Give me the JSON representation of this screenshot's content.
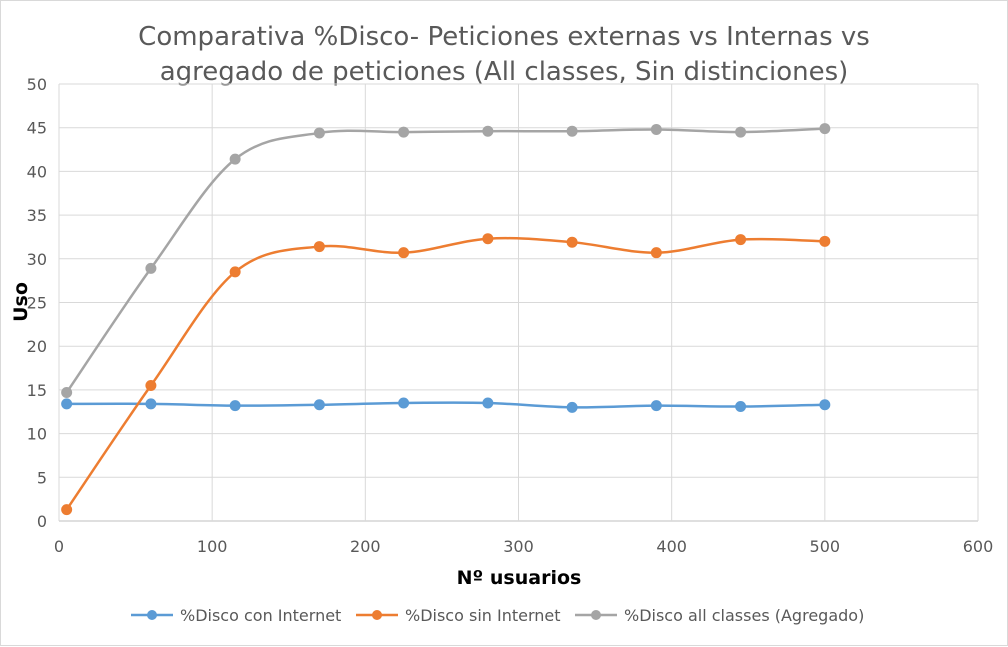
{
  "chart_data": {
    "type": "line",
    "title_lines": [
      "Comparativa %Disco- Peticiones externas vs Internas vs",
      "agregado de peticiones (All classes, Sin distinciones)"
    ],
    "xlabel": "Nº usuarios",
    "ylabel": "Uso",
    "xlim": [
      0,
      600
    ],
    "ylim": [
      0,
      50
    ],
    "x_ticks": [
      "0",
      "100",
      "200",
      "300",
      "400",
      "500",
      "600"
    ],
    "y_ticks": [
      "0",
      "5",
      "10",
      "15",
      "20",
      "25",
      "30",
      "35",
      "40",
      "45",
      "50"
    ],
    "grid": true,
    "smooth": true,
    "legend_position": "bottom",
    "x": [
      5,
      60,
      115,
      170,
      225,
      280,
      335,
      390,
      445,
      500
    ],
    "series": [
      {
        "name": "%Disco con Internet",
        "color": "#5b9bd5",
        "values": [
          13.4,
          13.4,
          13.2,
          13.3,
          13.5,
          13.5,
          13.0,
          13.2,
          13.1,
          13.3
        ]
      },
      {
        "name": "%Disco sin Internet",
        "color": "#ed7d31",
        "values": [
          1.3,
          15.5,
          28.5,
          31.4,
          30.7,
          32.3,
          31.9,
          30.7,
          32.2,
          32.0
        ]
      },
      {
        "name": "%Disco all classes (Agregado)",
        "color": "#a5a5a5",
        "values": [
          14.7,
          28.9,
          41.4,
          44.4,
          44.5,
          44.6,
          44.6,
          44.8,
          44.5,
          44.9
        ]
      }
    ]
  }
}
